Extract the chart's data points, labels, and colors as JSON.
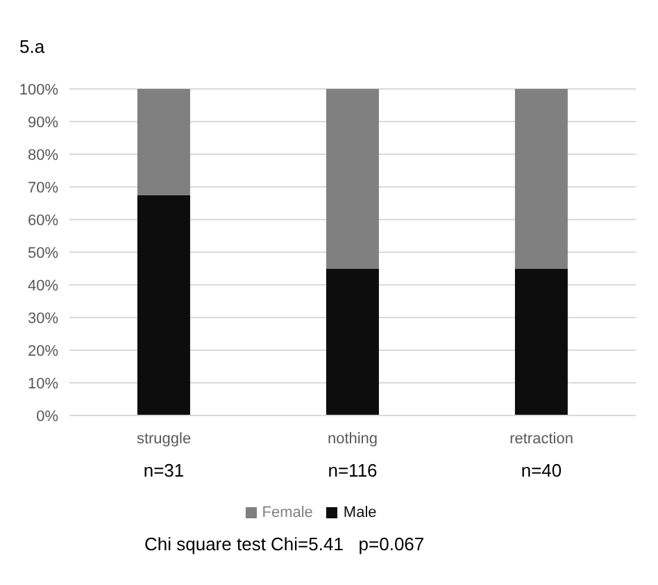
{
  "chart_data": {
    "type": "bar",
    "title": "5.a",
    "categories": [
      "struggle",
      "nothing",
      "retraction"
    ],
    "stacked": true,
    "series": [
      {
        "name": "Male",
        "color": "#0d0d0d",
        "values": [
          67.5,
          45,
          45
        ]
      },
      {
        "name": "Female",
        "color": "#808080",
        "values": [
          32.5,
          55,
          55
        ]
      }
    ],
    "ylim": [
      0,
      100
    ],
    "yticks": [
      {
        "value": 0,
        "label": "0%"
      },
      {
        "value": 10,
        "label": "10%"
      },
      {
        "value": 20,
        "label": "20%"
      },
      {
        "value": 30,
        "label": "30%"
      },
      {
        "value": 40,
        "label": "40%"
      },
      {
        "value": 50,
        "label": "50%"
      },
      {
        "value": 60,
        "label": "60%"
      },
      {
        "value": 70,
        "label": "70%"
      },
      {
        "value": 80,
        "label": "80%"
      },
      {
        "value": 90,
        "label": "90%"
      },
      {
        "value": 100,
        "label": "100%"
      }
    ],
    "grid": "y",
    "legend": "bottom",
    "annotations": [
      "n=31",
      "n=116",
      "n=40",
      "Chi square test Chi=5.41   p=0.067"
    ]
  }
}
